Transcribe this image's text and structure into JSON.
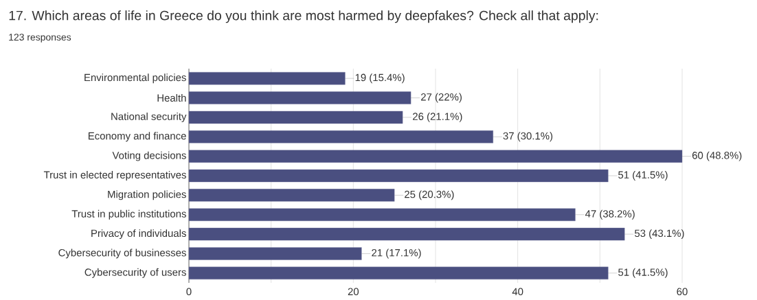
{
  "chart_data": {
    "type": "bar",
    "orientation": "horizontal",
    "title": "17. Which areas of life in Greece do you think are most harmed by deepfakes? Check all that apply:",
    "subtitle": "123 responses",
    "categories": [
      "Environmental policies",
      "Health",
      "National security",
      "Economy and finance",
      "Voting decisions",
      "Trust in elected representatives",
      "Migration policies",
      "Trust in public institutions",
      "Privacy of individuals",
      "Cybersecurity of businesses",
      "Cybersecurity of users"
    ],
    "values": [
      19,
      27,
      26,
      37,
      60,
      51,
      25,
      47,
      53,
      21,
      51
    ],
    "value_labels": [
      "19 (15.4%)",
      "27 (22%)",
      "26 (21.1%)",
      "37 (30.1%)",
      "60 (48.8%)",
      "51 (41.5%)",
      "25 (20.3%)",
      "47 (38.2%)",
      "53 (43.1%)",
      "21 (17.1%)",
      "51 (41.5%)"
    ],
    "color": "#4a4f80",
    "xlim": [
      0,
      60
    ],
    "xticks": [
      0,
      {
        "value": 10,
        "label": null
      },
      20,
      {
        "value": 30,
        "label": null
      },
      40,
      {
        "value": 50,
        "label": null
      },
      60
    ],
    "grid": "x"
  }
}
